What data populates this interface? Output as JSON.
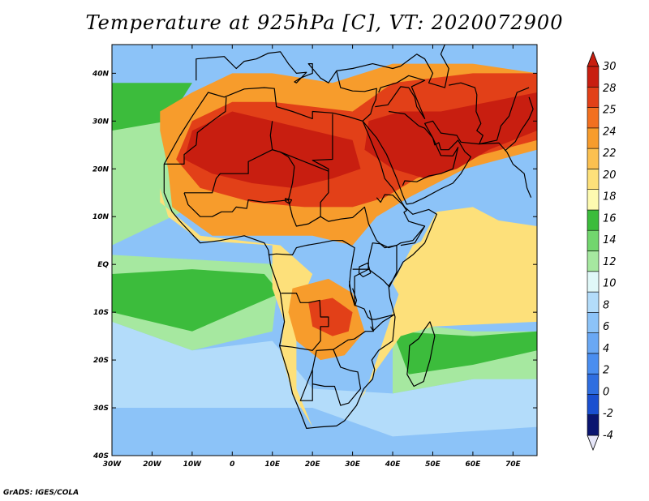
{
  "title": "Temperature at 925hPa [C], VT: 2020072900",
  "credit": "GrADS: IGES/COLA",
  "map": {
    "lon_range": [
      -30,
      76
    ],
    "lat_range": [
      -40,
      46
    ],
    "lon_ticks": [
      {
        "value": -30,
        "label": "30W"
      },
      {
        "value": -20,
        "label": "20W"
      },
      {
        "value": -10,
        "label": "10W"
      },
      {
        "value": 0,
        "label": "0"
      },
      {
        "value": 10,
        "label": "10E"
      },
      {
        "value": 20,
        "label": "20E"
      },
      {
        "value": 30,
        "label": "30E"
      },
      {
        "value": 40,
        "label": "40E"
      },
      {
        "value": 50,
        "label": "50E"
      },
      {
        "value": 60,
        "label": "60E"
      },
      {
        "value": 70,
        "label": "70E"
      }
    ],
    "lat_ticks": [
      {
        "value": 40,
        "label": "40N"
      },
      {
        "value": 30,
        "label": "30N"
      },
      {
        "value": 20,
        "label": "20N"
      },
      {
        "value": 10,
        "label": "10N"
      },
      {
        "value": 0,
        "label": "EQ"
      },
      {
        "value": -10,
        "label": "10S"
      },
      {
        "value": -20,
        "label": "20S"
      },
      {
        "value": -30,
        "label": "30S"
      },
      {
        "value": -40,
        "label": "40S"
      }
    ]
  },
  "colorbar": {
    "bins": [
      {
        "color": "#0a1570"
      },
      {
        "color": "#1a4fd0"
      },
      {
        "color": "#2f6ee0"
      },
      {
        "color": "#4a8ef0"
      },
      {
        "color": "#6aa8f4"
      },
      {
        "color": "#8cc3f8"
      },
      {
        "color": "#b3dcfa"
      },
      {
        "color": "#e0f8f8"
      },
      {
        "color": "#a6e8a0"
      },
      {
        "color": "#72d66e"
      },
      {
        "color": "#3cbc3c"
      },
      {
        "color": "#fdfab0"
      },
      {
        "color": "#fde07a"
      },
      {
        "color": "#fbc050"
      },
      {
        "color": "#f79c2c"
      },
      {
        "color": "#f27020"
      },
      {
        "color": "#e24018"
      },
      {
        "color": "#c81e10"
      }
    ],
    "labels": [
      "30",
      "28",
      "25",
      "24",
      "22",
      "20",
      "18",
      "16",
      "14",
      "12",
      "10",
      "8",
      "6",
      "4",
      "2",
      "0",
      "-2",
      "-4"
    ]
  },
  "field_colors": {
    "ocean_cold": "#6aa8f4",
    "ocean_cool": "#b3dcfa",
    "ocean_mild": "#a6e8a0",
    "ocean_warm": "#3cbc3c",
    "land_mild": "#fde07a",
    "land_warm": "#f79c2c",
    "land_hot": "#e24018",
    "land_hottest": "#c81e10"
  }
}
